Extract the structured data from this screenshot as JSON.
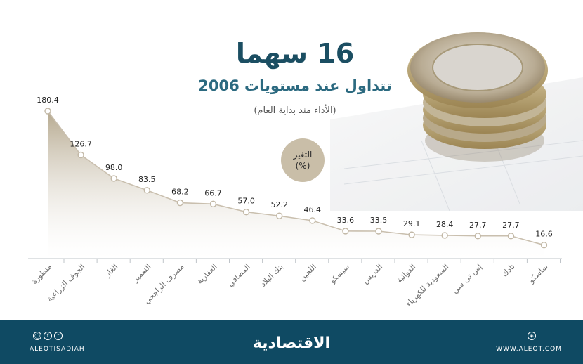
{
  "header": {
    "title": "16 سهما",
    "subtitle": "تتداول عند مستويات 2006",
    "note": "(الأداء منذ بداية العام)"
  },
  "badge": {
    "line1": "التغير",
    "line2": "(%)"
  },
  "footer": {
    "logo": "الاقتصادية",
    "handle": "ALEQTISADIAH",
    "website": "WWW.ALEQT.COM",
    "icons": [
      "instagram-icon",
      "facebook-icon",
      "twitter-icon",
      "web-icon"
    ]
  },
  "colors": {
    "footer": "#0f4a63",
    "title": "#1b4e62",
    "area_top": "#b6a98f",
    "area_bottom": "#ffffff",
    "line": "#c9bfae"
  },
  "chart_data": {
    "type": "area",
    "title": "16 سهما تتداول عند مستويات 2006",
    "subtitle": "(الأداء منذ بداية العام)",
    "ylabel": "التغير (%)",
    "categories": [
      "متطورة",
      "الجوف الزراعية",
      "الغاز",
      "التعمير",
      "مصرف الراجحي",
      "العقارية",
      "المصافي",
      "بنك البلاد",
      "اللجين",
      "سيسكو",
      "الدريس",
      "الدوائية",
      "السعودية للكهرباء",
      "إس تي سي",
      "نادك",
      "ساسكو"
    ],
    "values": [
      180.4,
      126.7,
      98.0,
      83.5,
      68.2,
      66.7,
      57.0,
      52.2,
      46.4,
      33.6,
      33.5,
      29.1,
      28.4,
      27.7,
      27.7,
      16.6
    ],
    "labels": [
      "180.4",
      "126.7",
      "98.0",
      "83.5",
      "68.2",
      "66.7",
      "57.0",
      "52.2",
      "46.4",
      "33.6",
      "33.5",
      "29.1",
      "28.4",
      "27.7",
      "27.7",
      "16.6"
    ],
    "ylim": [
      0,
      180.4
    ],
    "grid": false,
    "legend": "none"
  }
}
